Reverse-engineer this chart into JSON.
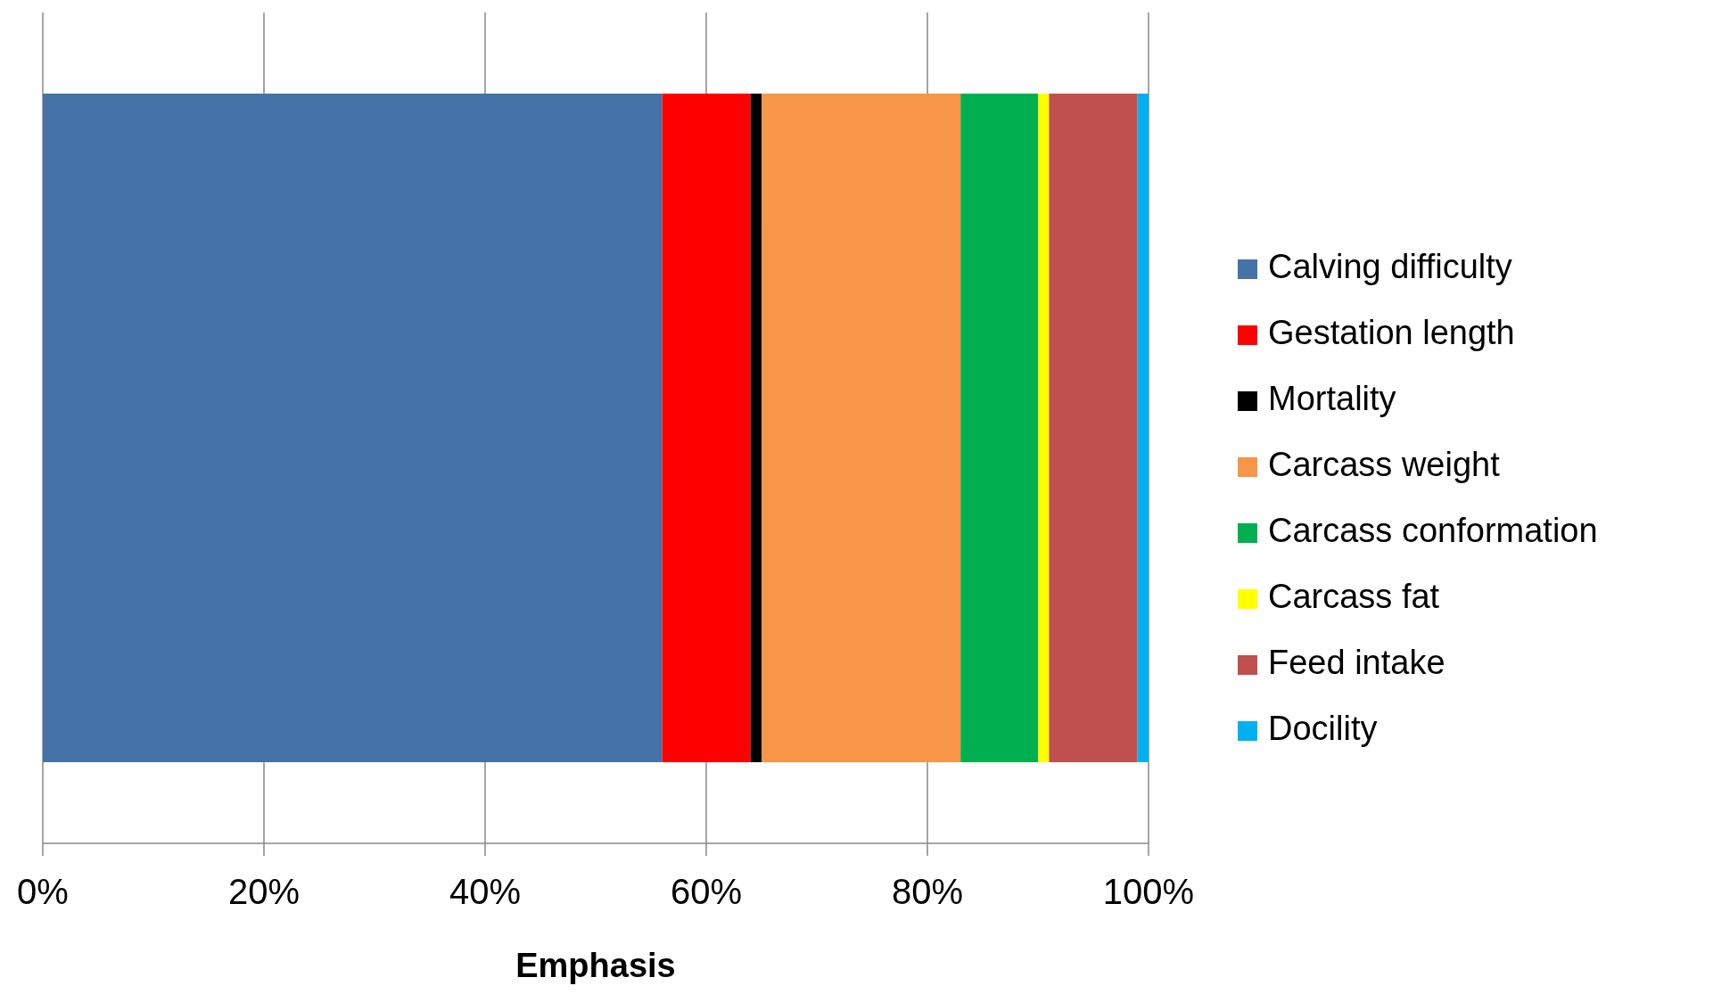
{
  "chart_data": {
    "type": "bar",
    "orientation": "horizontal",
    "stacked": true,
    "xlabel": "Emphasis",
    "categories": [
      null
    ],
    "series": [
      {
        "name": "Calving difficulty",
        "color": "#4572a7",
        "values": [
          56
        ]
      },
      {
        "name": "Gestation length",
        "color": "#ff0000",
        "values": [
          8
        ]
      },
      {
        "name": "Mortality",
        "color": "#000000",
        "values": [
          1
        ]
      },
      {
        "name": "Carcass weight",
        "color": "#f79646",
        "values": [
          18
        ]
      },
      {
        "name": "Carcass conformation",
        "color": "#00b050",
        "values": [
          7
        ]
      },
      {
        "name": "Carcass fat",
        "color": "#ffff00",
        "values": [
          1
        ]
      },
      {
        "name": "Feed intake",
        "color": "#c0504d",
        "values": [
          8
        ]
      },
      {
        "name": "Docility",
        "color": "#00b0f0",
        "values": [
          1
        ]
      }
    ],
    "xlim": [
      0,
      100
    ],
    "xticks": [
      {
        "value": 0,
        "label": "0%"
      },
      {
        "value": 20,
        "label": "20%"
      },
      {
        "value": 40,
        "label": "40%"
      },
      {
        "value": 60,
        "label": "60%"
      },
      {
        "value": 80,
        "label": "80%"
      },
      {
        "value": 100,
        "label": "100%"
      }
    ],
    "grid": "x",
    "legend": "right"
  }
}
